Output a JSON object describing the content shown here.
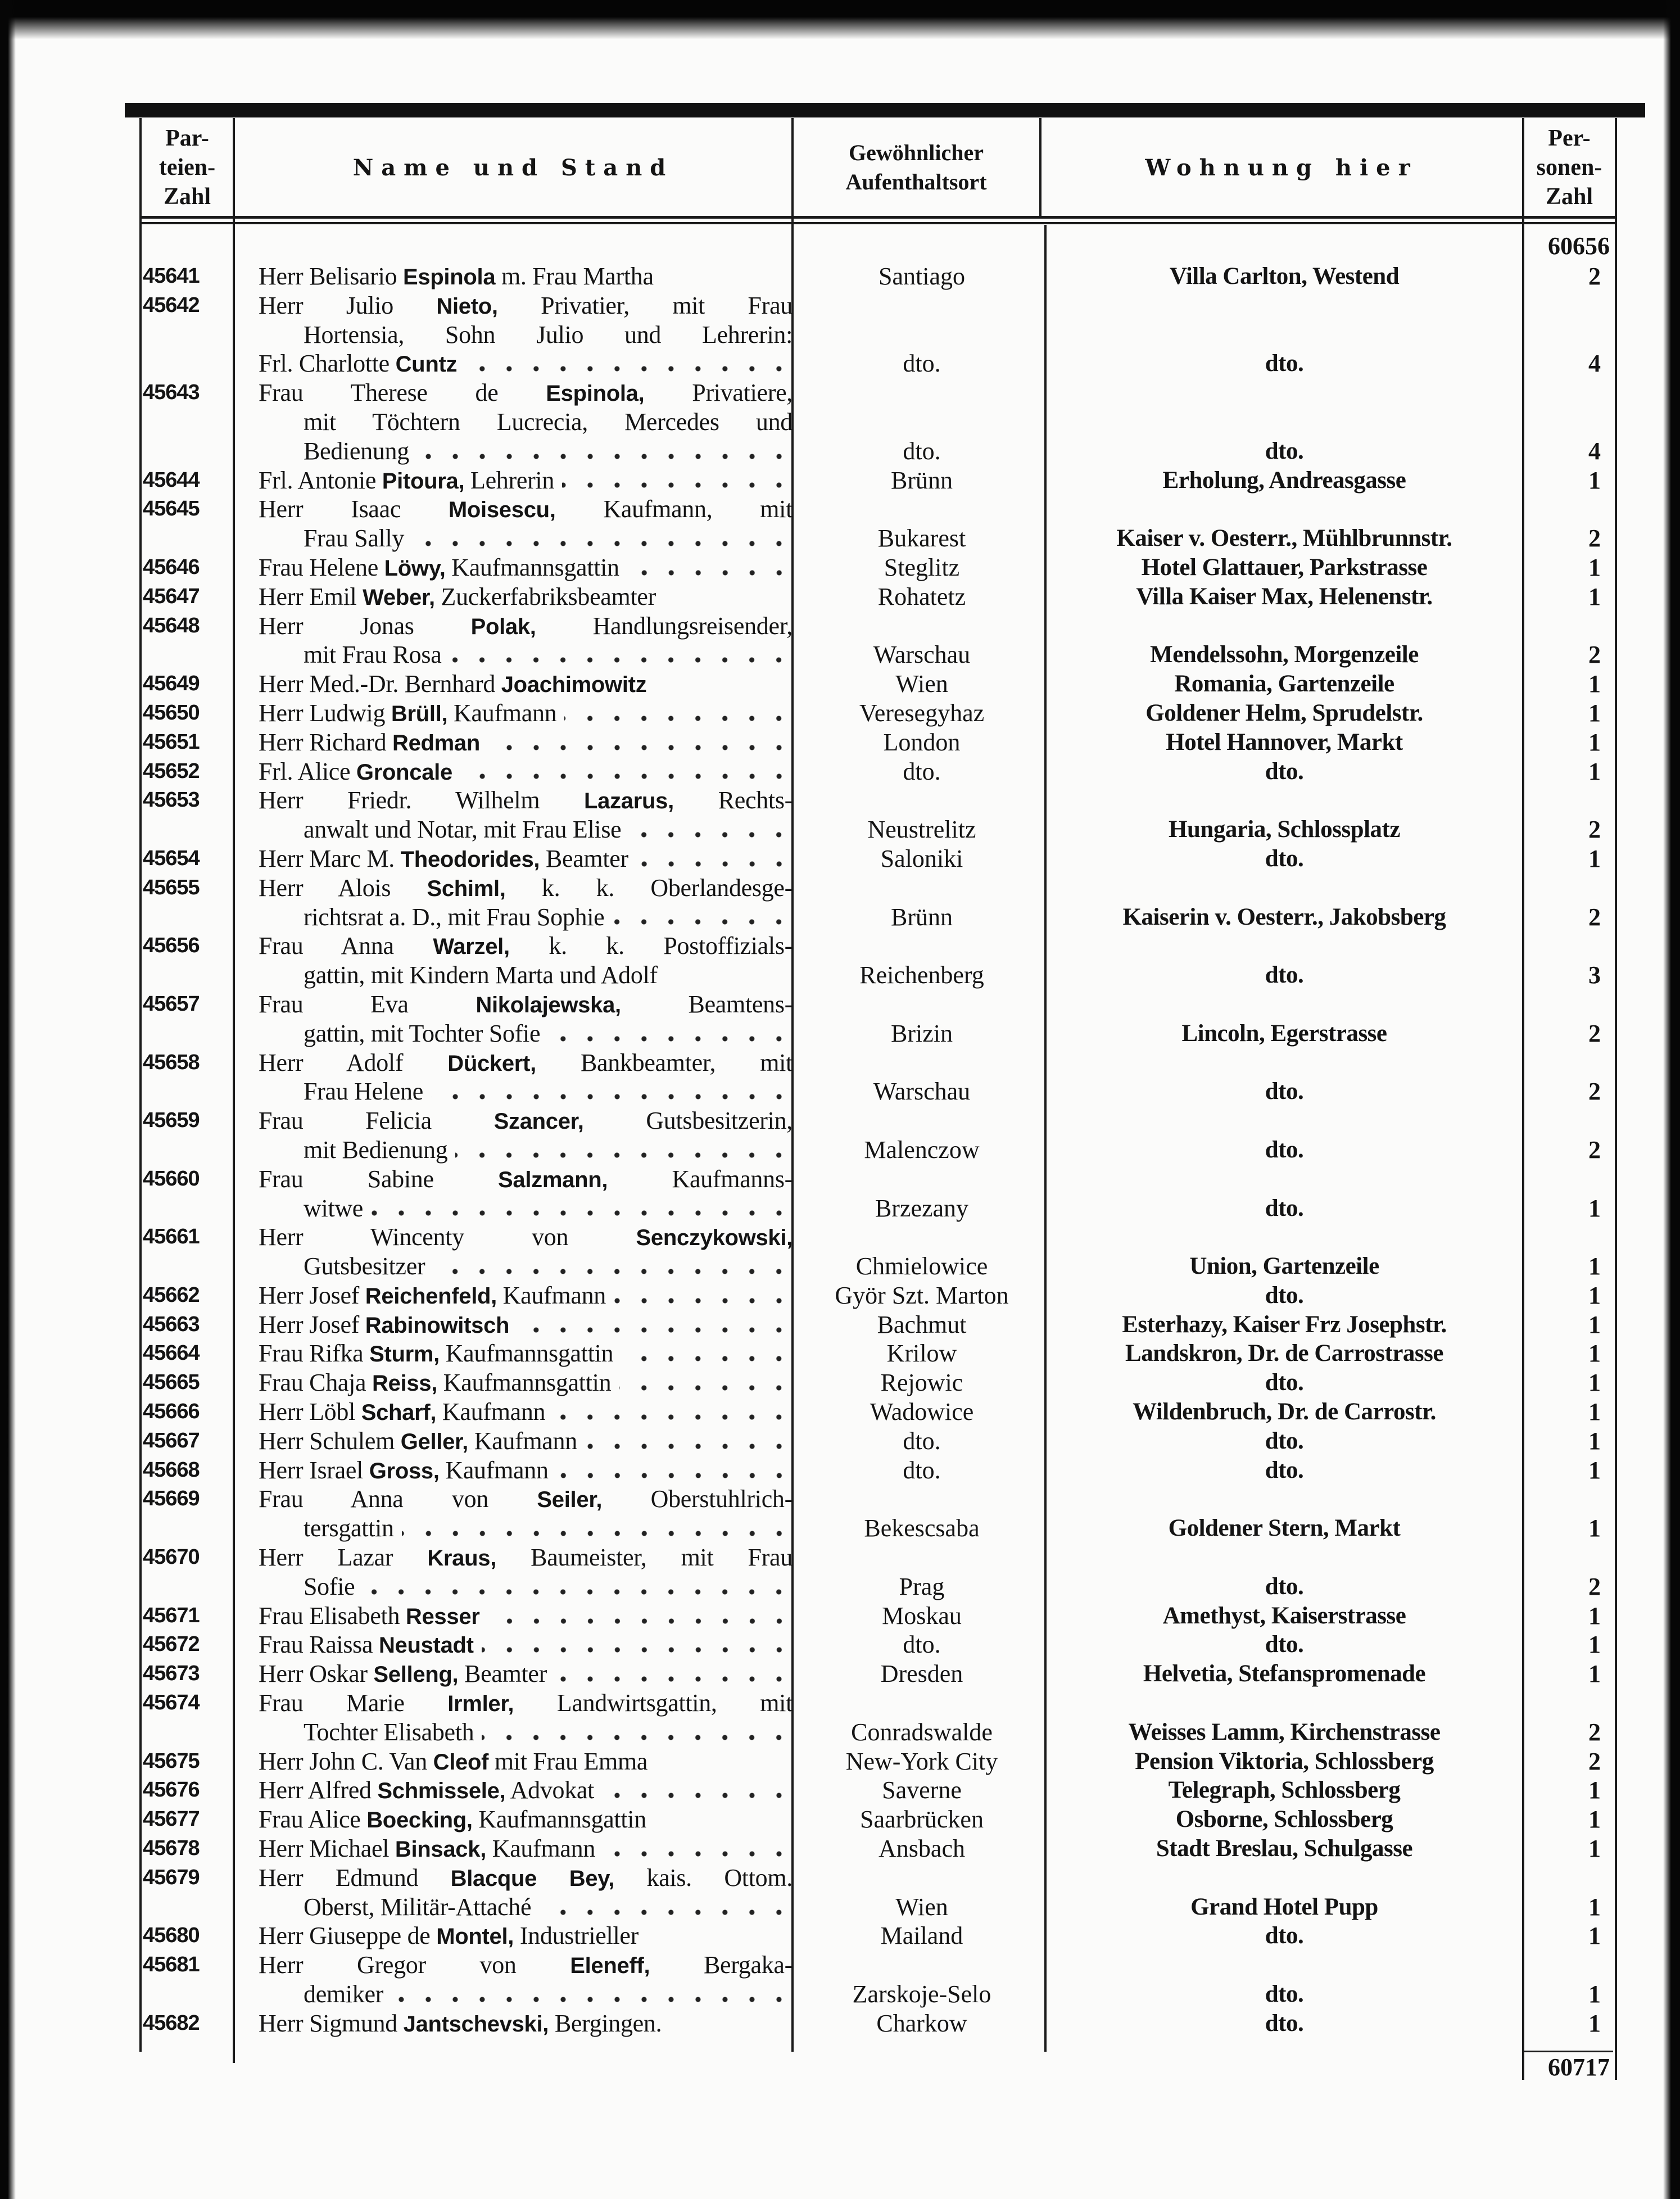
{
  "header": {
    "col_party": "Par-\nteien-\nZahl",
    "col_name": "Name und Stand",
    "col_origin": "Gewöhnlicher\nAufenthaltsort",
    "col_residence": "Wohnung hier",
    "col_persons": "Per-\nsonen-\nZahl"
  },
  "carry_over_total": "60656",
  "final_total": "60717",
  "entries": [
    {
      "num": "45641",
      "lines": [
        {
          "t": "Herr Belisario ",
          "b": "Espinola",
          "a": " m. Frau Martha"
        }
      ],
      "origin": "Santiago",
      "residence": "Villa Carlton, Westend",
      "persons": "2"
    },
    {
      "num": "45642",
      "lines": [
        {
          "t": "Herr Julio ",
          "b": "Nieto,",
          "a": " Privatier, mit Frau"
        },
        {
          "t": "Hortensia, Sohn Julio und Lehrerin:"
        },
        {
          "t": "Frl. Charlotte ",
          "b": "Cuntz",
          "d": 1
        }
      ],
      "origin": "dto.",
      "residence": "dto.",
      "persons": "4"
    },
    {
      "num": "45643",
      "lines": [
        {
          "t": "Frau Therese de ",
          "b": "Espinola,",
          "a": " Privatiere,"
        },
        {
          "t": "mit Töchtern Lucrecia, Mercedes und"
        },
        {
          "t": "Bedienung",
          "d": 1
        }
      ],
      "origin": "dto.",
      "residence": "dto.",
      "persons": "4"
    },
    {
      "num": "45644",
      "lines": [
        {
          "t": "Frl. Antonie ",
          "b": "Pitoura,",
          "a": " Lehrerin",
          "d": 1
        }
      ],
      "origin": "Brünn",
      "residence": "Erholung, Andreasgasse",
      "persons": "1"
    },
    {
      "num": "45645",
      "lines": [
        {
          "t": "Herr Isaac ",
          "b": "Moisescu,",
          "a": " Kaufmann, mit"
        },
        {
          "t": "Frau Sally",
          "d": 1
        }
      ],
      "origin": "Bukarest",
      "residence": "Kaiser v. Oesterr., Mühlbrunnstr.",
      "persons": "2"
    },
    {
      "num": "45646",
      "lines": [
        {
          "t": "Frau Helene ",
          "b": "Löwy,",
          "a": " Kaufmannsgattin",
          "d": 1
        }
      ],
      "origin": "Steglitz",
      "residence": "Hotel Glattauer, Parkstrasse",
      "persons": "1"
    },
    {
      "num": "45647",
      "lines": [
        {
          "t": "Herr Emil ",
          "b": "Weber,",
          "a": " Zuckerfabriksbeamter"
        }
      ],
      "origin": "Rohatetz",
      "residence": "Villa Kaiser Max, Helenenstr.",
      "persons": "1"
    },
    {
      "num": "45648",
      "lines": [
        {
          "t": "Herr Jonas ",
          "b": "Polak,",
          "a": " Handlungsreisender,"
        },
        {
          "t": "mit Frau Rosa",
          "d": 1
        }
      ],
      "origin": "Warschau",
      "residence": "Mendelssohn, Morgenzeile",
      "persons": "2"
    },
    {
      "num": "45649",
      "lines": [
        {
          "t": "Herr Med.-Dr. Bernhard ",
          "b": "Joachimowitz"
        }
      ],
      "origin": "Wien",
      "residence": "Romania, Gartenzeile",
      "persons": "1"
    },
    {
      "num": "45650",
      "lines": [
        {
          "t": "Herr Ludwig ",
          "b": "Brüll,",
          "a": " Kaufmann",
          "d": 1
        }
      ],
      "origin": "Veresegyhaz",
      "residence": "Goldener Helm, Sprudelstr.",
      "persons": "1"
    },
    {
      "num": "45651",
      "lines": [
        {
          "t": "Herr Richard ",
          "b": "Redman",
          "d": 1
        }
      ],
      "origin": "London",
      "residence": "Hotel Hannover, Markt",
      "persons": "1"
    },
    {
      "num": "45652",
      "lines": [
        {
          "t": "Frl. Alice ",
          "b": "Groncale",
          "d": 1
        }
      ],
      "origin": "dto.",
      "residence": "dto.",
      "persons": "1"
    },
    {
      "num": "45653",
      "lines": [
        {
          "t": "Herr Friedr. Wilhelm ",
          "b": "Lazarus,",
          "a": " Rechts-"
        },
        {
          "t": "anwalt und Notar, mit Frau Elise",
          "d": 1
        }
      ],
      "origin": "Neustrelitz",
      "residence": "Hungaria, Schlossplatz",
      "persons": "2"
    },
    {
      "num": "45654",
      "lines": [
        {
          "t": "Herr Marc M. ",
          "b": "Theodorides,",
          "a": " Beamter",
          "d": 1
        }
      ],
      "origin": "Saloniki",
      "residence": "dto.",
      "persons": "1"
    },
    {
      "num": "45655",
      "lines": [
        {
          "t": "Herr Alois ",
          "b": "Schiml,",
          "a": " k. k. Oberlandesge-"
        },
        {
          "t": "richtsrat a. D., mit Frau Sophie",
          "d": 1
        }
      ],
      "origin": "Brünn",
      "residence": "Kaiserin v. Oesterr., Jakobsberg",
      "persons": "2"
    },
    {
      "num": "45656",
      "lines": [
        {
          "t": "Frau Anna ",
          "b": "Warzel,",
          "a": " k. k. Postoffizials-"
        },
        {
          "t": "gattin, mit Kindern Marta und Adolf"
        }
      ],
      "origin": "Reichenberg",
      "residence": "dto.",
      "persons": "3"
    },
    {
      "num": "45657",
      "lines": [
        {
          "t": "Frau Eva ",
          "b": "Nikolajewska,",
          "a": " Beamtens-"
        },
        {
          "t": "gattin, mit Tochter Sofie",
          "d": 1
        }
      ],
      "origin": "Brizin",
      "residence": "Lincoln, Egerstrasse",
      "persons": "2"
    },
    {
      "num": "45658",
      "lines": [
        {
          "t": "Herr Adolf ",
          "b": "Dückert,",
          "a": " Bankbeamter, mit"
        },
        {
          "t": "Frau Helene",
          "d": 1
        }
      ],
      "origin": "Warschau",
      "residence": "dto.",
      "persons": "2"
    },
    {
      "num": "45659",
      "lines": [
        {
          "t": "Frau Felicia ",
          "b": "Szancer,",
          "a": " Gutsbesitzerin,"
        },
        {
          "t": "mit Bedienung",
          "d": 1
        }
      ],
      "origin": "Malenczow",
      "residence": "dto.",
      "persons": "2"
    },
    {
      "num": "45660",
      "lines": [
        {
          "t": "Frau Sabine ",
          "b": "Salzmann,",
          "a": " Kaufmanns-"
        },
        {
          "t": "witwe",
          "d": 1
        }
      ],
      "origin": "Brzezany",
      "residence": "dto.",
      "persons": "1"
    },
    {
      "num": "45661",
      "lines": [
        {
          "t": "Herr Wincenty von ",
          "b": "Senczykowski,"
        },
        {
          "t": "Gutsbesitzer",
          "d": 1
        }
      ],
      "origin": "Chmielowice",
      "residence": "Union, Gartenzeile",
      "persons": "1"
    },
    {
      "num": "45662",
      "lines": [
        {
          "t": "Herr Josef ",
          "b": "Reichenfeld,",
          "a": " Kaufmann",
          "d": 1
        }
      ],
      "origin": "Györ Szt. Marton",
      "residence": "dto.",
      "persons": "1"
    },
    {
      "num": "45663",
      "lines": [
        {
          "t": "Herr Josef ",
          "b": "Rabinowitsch",
          "d": 1
        }
      ],
      "origin": "Bachmut",
      "residence": "Esterhazy, Kaiser Frz Josephstr.",
      "persons": "1"
    },
    {
      "num": "45664",
      "lines": [
        {
          "t": "Frau Rifka ",
          "b": "Sturm,",
          "a": " Kaufmannsgattin",
          "d": 1
        }
      ],
      "origin": "Krilow",
      "residence": "Landskron, Dr. de Carrostrasse",
      "persons": "1"
    },
    {
      "num": "45665",
      "lines": [
        {
          "t": "Frau Chaja ",
          "b": "Reiss,",
          "a": " Kaufmannsgattin",
          "d": 1
        }
      ],
      "origin": "Rejowic",
      "residence": "dto.",
      "persons": "1"
    },
    {
      "num": "45666",
      "lines": [
        {
          "t": "Herr Löbl ",
          "b": "Scharf,",
          "a": " Kaufmann",
          "d": 1
        }
      ],
      "origin": "Wadowice",
      "residence": "Wildenbruch, Dr. de Carrostr.",
      "persons": "1"
    },
    {
      "num": "45667",
      "lines": [
        {
          "t": "Herr Schulem ",
          "b": "Geller,",
          "a": " Kaufmann",
          "d": 1
        }
      ],
      "origin": "dto.",
      "residence": "dto.",
      "persons": "1"
    },
    {
      "num": "45668",
      "lines": [
        {
          "t": "Herr Israel ",
          "b": "Gross,",
          "a": " Kaufmann",
          "d": 1
        }
      ],
      "origin": "dto.",
      "residence": "dto.",
      "persons": "1"
    },
    {
      "num": "45669",
      "lines": [
        {
          "t": "Frau Anna von ",
          "b": "Seiler,",
          "a": " Oberstuhlrich-"
        },
        {
          "t": "tersgattin",
          "d": 1
        }
      ],
      "origin": "Bekescsaba",
      "residence": "Goldener Stern, Markt",
      "persons": "1"
    },
    {
      "num": "45670",
      "lines": [
        {
          "t": "Herr Lazar ",
          "b": "Kraus,",
          "a": " Baumeister, mit Frau"
        },
        {
          "t": "Sofie",
          "d": 1
        }
      ],
      "origin": "Prag",
      "residence": "dto.",
      "persons": "2"
    },
    {
      "num": "45671",
      "lines": [
        {
          "t": "Frau Elisabeth ",
          "b": "Resser",
          "d": 1
        }
      ],
      "origin": "Moskau",
      "residence": "Amethyst, Kaiserstrasse",
      "persons": "1"
    },
    {
      "num": "45672",
      "lines": [
        {
          "t": "Frau Raissa ",
          "b": "Neustadt",
          "d": 1
        }
      ],
      "origin": "dto.",
      "residence": "dto.",
      "persons": "1"
    },
    {
      "num": "45673",
      "lines": [
        {
          "t": "Herr Oskar ",
          "b": "Selleng,",
          "a": " Beamter",
          "d": 1
        }
      ],
      "origin": "Dresden",
      "residence": "Helvetia, Stefanspromenade",
      "persons": "1"
    },
    {
      "num": "45674",
      "lines": [
        {
          "t": "Frau Marie ",
          "b": "Irmler,",
          "a": " Landwirtsgattin, mit"
        },
        {
          "t": "Tochter Elisabeth",
          "d": 1
        }
      ],
      "origin": "Conradswalde",
      "residence": "Weisses Lamm, Kirchenstrasse",
      "persons": "2"
    },
    {
      "num": "45675",
      "lines": [
        {
          "t": "Herr John C. Van ",
          "b": "Cleof",
          "a": " mit Frau Emma"
        }
      ],
      "origin": "New-York City",
      "residence": "Pension Viktoria, Schlossberg",
      "persons": "2"
    },
    {
      "num": "45676",
      "lines": [
        {
          "t": "Herr Alfred ",
          "b": "Schmissele,",
          "a": " Advokat",
          "d": 1
        }
      ],
      "origin": "Saverne",
      "residence": "Telegraph, Schlossberg",
      "persons": "1"
    },
    {
      "num": "45677",
      "lines": [
        {
          "t": "Frau Alice ",
          "b": "Boecking,",
          "a": " Kaufmannsgattin"
        }
      ],
      "origin": "Saarbrücken",
      "residence": "Osborne, Schlossberg",
      "persons": "1"
    },
    {
      "num": "45678",
      "lines": [
        {
          "t": "Herr Michael ",
          "b": "Binsack,",
          "a": " Kaufmann",
          "d": 1
        }
      ],
      "origin": "Ansbach",
      "residence": "Stadt Breslau, Schulgasse",
      "persons": "1"
    },
    {
      "num": "45679",
      "lines": [
        {
          "t": "Herr Edmund ",
          "b": "Blacque Bey,",
          "a": " kais. Ottom."
        },
        {
          "t": "Oberst, Militär-Attaché",
          "d": 1
        }
      ],
      "origin": "Wien",
      "residence": "Grand Hotel Pupp",
      "persons": "1"
    },
    {
      "num": "45680",
      "lines": [
        {
          "t": "Herr Giuseppe de ",
          "b": "Montel,",
          "a": " Industrieller"
        }
      ],
      "origin": "Mailand",
      "residence": "dto.",
      "persons": "1"
    },
    {
      "num": "45681",
      "lines": [
        {
          "t": "Herr Gregor von ",
          "b": "Eleneff,",
          "a": " Bergaka-"
        },
        {
          "t": "demiker",
          "d": 1
        }
      ],
      "origin": "Zarskoje-Selo",
      "residence": "dto.",
      "persons": "1"
    },
    {
      "num": "45682",
      "lines": [
        {
          "t": "Herr Sigmund ",
          "b": "Jantschevski,",
          "a": " Bergingen."
        }
      ],
      "origin": "Charkow",
      "residence": "dto.",
      "persons": "1"
    }
  ]
}
